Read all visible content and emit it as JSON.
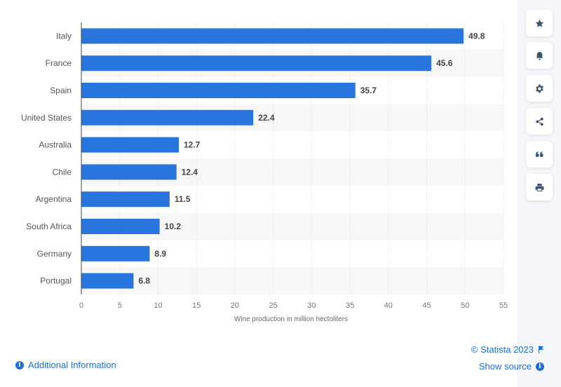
{
  "chart_data": {
    "type": "bar",
    "orientation": "horizontal",
    "title": "",
    "xlabel": "Wine production in million hectoliters",
    "ylabel": "",
    "categories": [
      "Italy",
      "France",
      "Spain",
      "United States",
      "Australia",
      "Chile",
      "Argentina",
      "South Africa",
      "Germany",
      "Portugal"
    ],
    "values": [
      49.8,
      45.6,
      35.7,
      22.4,
      12.7,
      12.4,
      11.5,
      10.2,
      8.9,
      6.8
    ],
    "value_labels": [
      "49.8",
      "45.6",
      "35.7",
      "22.4",
      "12.7",
      "12.4",
      "11.5",
      "10.2",
      "8.9",
      "6.8"
    ],
    "xlim": [
      0,
      55
    ],
    "xticks": [
      0,
      5,
      10,
      15,
      20,
      25,
      30,
      35,
      40,
      45,
      50,
      55
    ],
    "grid": true,
    "legend": "none",
    "bar_color": "#2876dd"
  },
  "sidebar": {
    "buttons": [
      {
        "name": "favorite",
        "icon": "star-icon"
      },
      {
        "name": "notification",
        "icon": "bell-icon"
      },
      {
        "name": "settings",
        "icon": "gear-icon"
      },
      {
        "name": "share",
        "icon": "share-icon"
      },
      {
        "name": "cite",
        "icon": "quote-icon"
      },
      {
        "name": "print",
        "icon": "printer-icon"
      }
    ]
  },
  "footer": {
    "additional_info": "Additional Information",
    "copyright": "© Statista 2023",
    "show_source": "Show source",
    "info_glyph": "i"
  },
  "colors": {
    "accent": "#1d6ed8",
    "bar": "#2876dd",
    "band": "#f7f7f7"
  }
}
